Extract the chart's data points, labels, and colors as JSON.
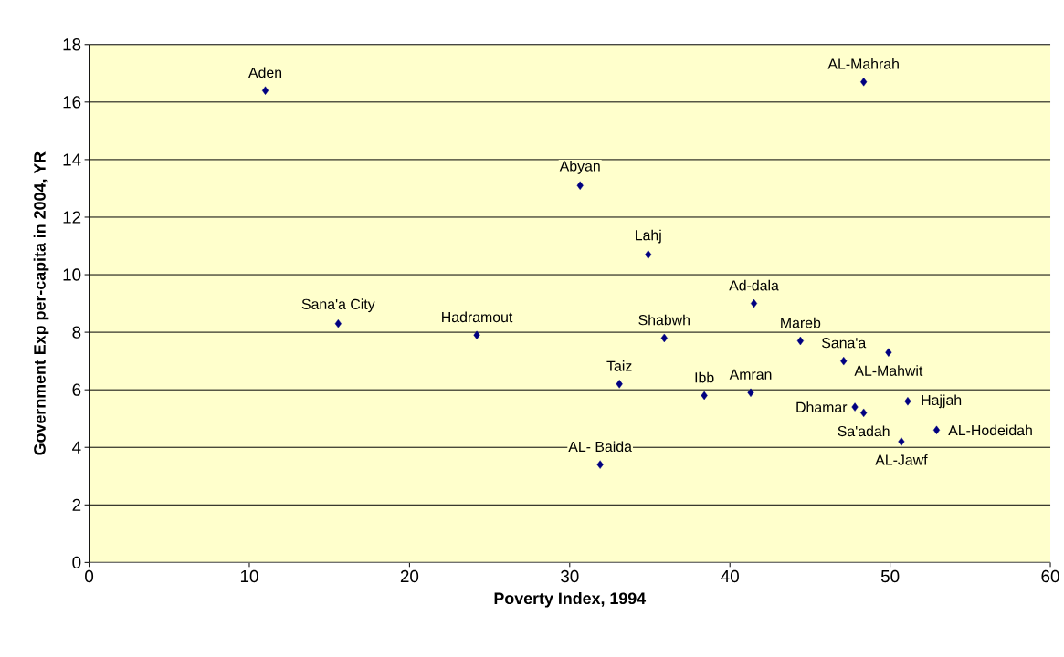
{
  "chart_data": {
    "type": "scatter",
    "xlabel": "Poverty Index, 1994",
    "ylabel": "Government  Exp per-capita in 2004, YR",
    "x": [
      11.0,
      48.35,
      30.65,
      34.9,
      41.5,
      15.55,
      24.2,
      35.9,
      44.4,
      47.1,
      49.9,
      33.1,
      38.4,
      41.3,
      47.8,
      48.35,
      51.1,
      52.9,
      50.7,
      31.9
    ],
    "values": [
      16.4,
      16.7,
      13.1,
      10.7,
      9.0,
      8.3,
      7.9,
      7.8,
      7.7,
      7.0,
      7.3,
      6.2,
      5.8,
      5.9,
      5.4,
      5.2,
      5.6,
      4.6,
      4.2,
      3.4
    ],
    "color": "#000080",
    "marker": "diamond",
    "xlim": [
      0,
      60
    ],
    "xticks": [
      0,
      10,
      20,
      30,
      40,
      50,
      60
    ],
    "ylim": [
      0,
      18
    ],
    "yticks": [
      0,
      2,
      4,
      6,
      8,
      10,
      12,
      14,
      16,
      18
    ],
    "grid": "y",
    "annotations": [
      {
        "text": "Aden",
        "x": 11.0,
        "y": 16.4
      },
      {
        "text": "AL-Mahrah",
        "x": 48.35,
        "y": 16.7
      },
      {
        "text": "Abyan",
        "x": 30.65,
        "y": 13.1
      },
      {
        "text": "Lahj",
        "x": 34.9,
        "y": 10.7
      },
      {
        "text": "Ad-dala",
        "x": 41.5,
        "y": 9.0
      },
      {
        "text": "Sana'a City",
        "x": 15.55,
        "y": 8.3
      },
      {
        "text": "Hadramout",
        "x": 24.2,
        "y": 7.9
      },
      {
        "text": "Shabwh",
        "x": 35.9,
        "y": 7.8
      },
      {
        "text": "Mareb",
        "x": 44.4,
        "y": 7.7
      },
      {
        "text": "Sana'a",
        "x": 47.1,
        "y": 7.0
      },
      {
        "text": "AL-Mahwit",
        "x": 49.9,
        "y": 7.3
      },
      {
        "text": "Taiz",
        "x": 33.1,
        "y": 6.2
      },
      {
        "text": "Ibb",
        "x": 38.4,
        "y": 5.8
      },
      {
        "text": "Amran",
        "x": 41.3,
        "y": 5.9
      },
      {
        "text": "Dhamar",
        "x": 47.8,
        "y": 5.4
      },
      {
        "text": "Sa'adah",
        "x": 48.35,
        "y": 5.2
      },
      {
        "text": "Hajjah",
        "x": 51.1,
        "y": 5.6
      },
      {
        "text": "AL-Hodeidah",
        "x": 52.9,
        "y": 4.6
      },
      {
        "text": "AL-Jawf",
        "x": 50.7,
        "y": 4.2
      },
      {
        "text": "AL- Baida",
        "x": 31.9,
        "y": 3.4
      }
    ]
  }
}
